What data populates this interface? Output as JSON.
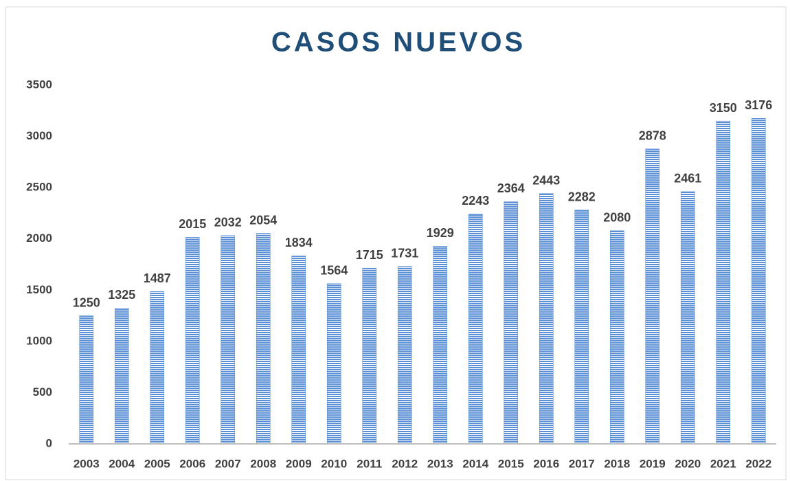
{
  "chart_data": {
    "type": "bar",
    "title": "CASOS NUEVOS",
    "categories": [
      "2003",
      "2004",
      "2005",
      "2006",
      "2007",
      "2008",
      "2009",
      "2010",
      "2011",
      "2012",
      "2013",
      "2014",
      "2015",
      "2016",
      "2017",
      "2018",
      "2019",
      "2020",
      "2021",
      "2022"
    ],
    "values": [
      1250,
      1325,
      1487,
      2015,
      2032,
      2054,
      1834,
      1564,
      1715,
      1731,
      1929,
      2243,
      2364,
      2443,
      2282,
      2080,
      2878,
      2461,
      3150,
      3176
    ],
    "color": "#5b8fd6",
    "ylim": [
      0,
      3500
    ],
    "yticks": [
      0,
      500,
      1000,
      1500,
      2000,
      2500,
      3000,
      3500
    ],
    "grid": false
  }
}
